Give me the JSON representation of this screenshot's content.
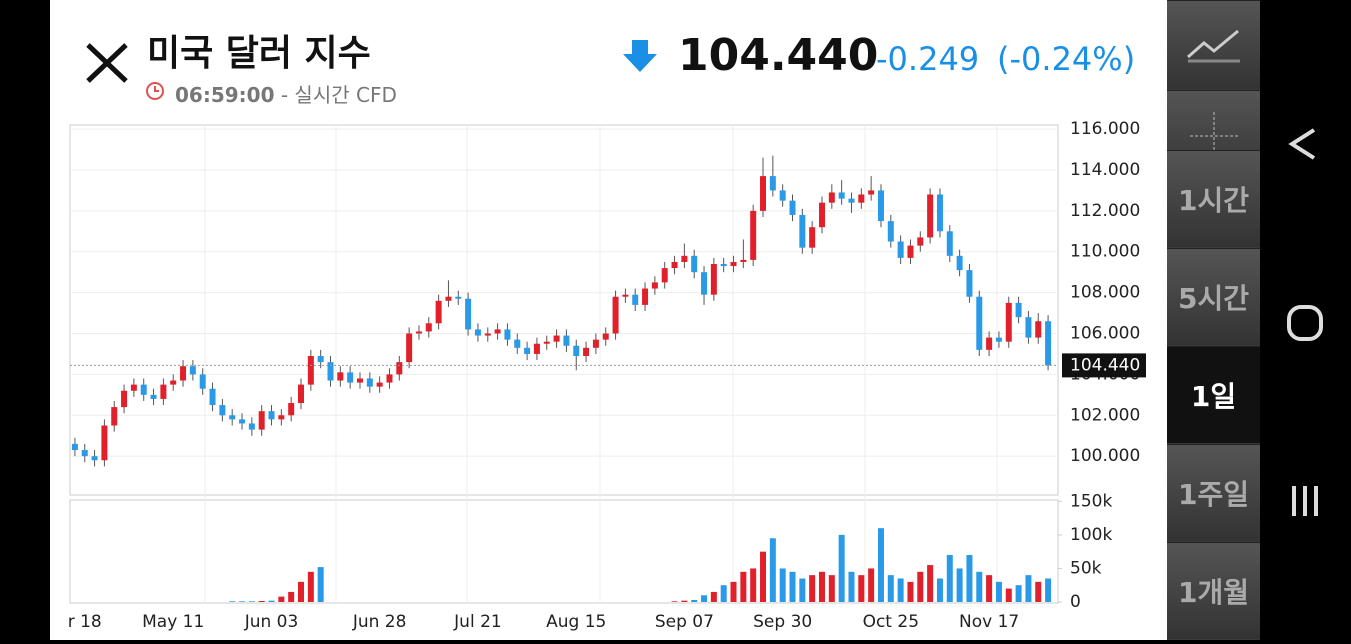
{
  "header": {
    "title": "미국 달러 지수",
    "time": "06:59:00",
    "source": "- 실시간 CFD",
    "price": "104.440",
    "change": "-0.249",
    "change_pct": "(-0.24%)"
  },
  "sidebar": {
    "intervals": [
      "1시간",
      "5시간",
      "1일",
      "1주일",
      "1개월"
    ],
    "selected": 2
  },
  "chart_data": {
    "type": "candlestick",
    "last_price": 104.44,
    "last_price_label": "104.440",
    "up_color": "#e0202a",
    "down_color": "#2a9ae8",
    "ylim": [
      98.1,
      116.2
    ],
    "yticks": [
      {
        "value": 100,
        "label": "100.000"
      },
      {
        "value": 102,
        "label": "102.000"
      },
      {
        "value": 104,
        "label": "104.000"
      },
      {
        "value": 106,
        "label": "106.000"
      },
      {
        "value": 108,
        "label": "108.000"
      },
      {
        "value": 110,
        "label": "110.000"
      },
      {
        "value": 112,
        "label": "112.000"
      },
      {
        "value": 114,
        "label": "114.000"
      },
      {
        "value": 116,
        "label": "116.000"
      }
    ],
    "volume_ylim": [
      0,
      152000
    ],
    "volume_ticks": [
      {
        "value": 0,
        "label": "0"
      },
      {
        "value": 50000,
        "label": "50k"
      },
      {
        "value": 100000,
        "label": "100k"
      },
      {
        "value": 150000,
        "label": "150k"
      }
    ],
    "categories": [
      null,
      "r 18",
      null,
      null,
      null,
      null,
      null,
      null,
      null,
      null,
      "May 11",
      null,
      null,
      null,
      null,
      null,
      null,
      null,
      null,
      null,
      "Jun 03",
      null,
      null,
      null,
      null,
      null,
      null,
      null,
      null,
      null,
      null,
      "Jun 28",
      null,
      null,
      null,
      null,
      null,
      null,
      null,
      null,
      null,
      "Jul 21",
      null,
      null,
      null,
      null,
      null,
      null,
      null,
      null,
      null,
      "Aug 15",
      null,
      null,
      null,
      null,
      null,
      null,
      null,
      null,
      null,
      null,
      "Sep 07",
      null,
      null,
      null,
      null,
      null,
      null,
      null,
      null,
      null,
      "Sep 30",
      null,
      null,
      null,
      null,
      null,
      null,
      null,
      null,
      null,
      null,
      "Oct 25",
      null,
      null,
      null,
      null,
      null,
      null,
      null,
      null,
      null,
      "Nov 17",
      null,
      null,
      null,
      null,
      null,
      null
    ],
    "ohlc": [
      [
        100.6,
        100.9,
        100.0,
        100.3
      ],
      [
        100.3,
        100.6,
        99.7,
        100.0
      ],
      [
        100.0,
        100.3,
        99.5,
        99.8
      ],
      [
        99.8,
        101.8,
        99.5,
        101.5
      ],
      [
        101.5,
        102.7,
        101.2,
        102.4
      ],
      [
        102.4,
        103.5,
        102.1,
        103.2
      ],
      [
        103.2,
        103.8,
        102.9,
        103.5
      ],
      [
        103.5,
        103.8,
        102.7,
        103.0
      ],
      [
        103.0,
        103.3,
        102.5,
        102.8
      ],
      [
        102.8,
        103.8,
        102.5,
        103.5
      ],
      [
        103.5,
        104.0,
        103.2,
        103.7
      ],
      [
        103.7,
        104.7,
        103.4,
        104.4
      ],
      [
        104.4,
        104.7,
        103.7,
        104.0
      ],
      [
        104.0,
        104.3,
        103.0,
        103.3
      ],
      [
        103.3,
        103.6,
        102.2,
        102.5
      ],
      [
        102.5,
        102.8,
        101.7,
        102.0
      ],
      [
        102.0,
        102.3,
        101.5,
        101.8
      ],
      [
        101.8,
        102.1,
        101.3,
        101.6
      ],
      [
        101.6,
        101.9,
        101.0,
        101.3
      ],
      [
        101.3,
        102.5,
        101.0,
        102.2
      ],
      [
        102.2,
        102.5,
        101.5,
        101.8
      ],
      [
        101.8,
        102.3,
        101.5,
        102.0
      ],
      [
        102.0,
        102.9,
        101.7,
        102.6
      ],
      [
        102.6,
        103.8,
        102.3,
        103.5
      ],
      [
        103.5,
        105.2,
        103.2,
        104.9
      ],
      [
        104.9,
        105.2,
        104.3,
        104.6
      ],
      [
        104.6,
        104.9,
        103.4,
        103.7
      ],
      [
        103.7,
        104.4,
        103.4,
        104.1
      ],
      [
        104.1,
        104.4,
        103.3,
        103.6
      ],
      [
        103.6,
        104.1,
        103.3,
        103.8
      ],
      [
        103.8,
        104.1,
        103.1,
        103.4
      ],
      [
        103.4,
        103.9,
        103.1,
        103.6
      ],
      [
        103.6,
        104.3,
        103.3,
        104.0
      ],
      [
        104.0,
        104.9,
        103.7,
        104.6
      ],
      [
        104.6,
        106.3,
        104.3,
        106.0
      ],
      [
        106.0,
        106.4,
        105.7,
        106.1
      ],
      [
        106.1,
        106.8,
        105.8,
        106.5
      ],
      [
        106.5,
        107.9,
        106.2,
        107.6
      ],
      [
        107.6,
        108.6,
        107.3,
        107.8
      ],
      [
        107.8,
        108.1,
        107.4,
        107.7
      ],
      [
        107.7,
        108.0,
        105.9,
        106.2
      ],
      [
        106.2,
        106.5,
        105.6,
        105.9
      ],
      [
        105.9,
        106.3,
        105.6,
        106.0
      ],
      [
        106.0,
        106.5,
        105.7,
        106.2
      ],
      [
        106.2,
        106.5,
        105.4,
        105.7
      ],
      [
        105.7,
        106.0,
        105.0,
        105.3
      ],
      [
        105.3,
        105.6,
        104.7,
        105.0
      ],
      [
        105.0,
        105.8,
        104.7,
        105.5
      ],
      [
        105.5,
        105.9,
        105.2,
        105.6
      ],
      [
        105.6,
        106.2,
        105.3,
        105.9
      ],
      [
        105.9,
        106.2,
        105.1,
        105.4
      ],
      [
        105.4,
        105.7,
        104.2,
        104.9
      ],
      [
        104.9,
        105.6,
        104.6,
        105.3
      ],
      [
        105.3,
        106.0,
        105.0,
        105.7
      ],
      [
        105.7,
        106.3,
        105.4,
        106.0
      ],
      [
        106.0,
        108.1,
        105.7,
        107.8
      ],
      [
        107.8,
        108.2,
        107.5,
        107.9
      ],
      [
        107.9,
        108.2,
        107.1,
        107.4
      ],
      [
        107.4,
        108.5,
        107.1,
        108.2
      ],
      [
        108.2,
        108.8,
        107.9,
        108.5
      ],
      [
        108.5,
        109.5,
        108.2,
        109.2
      ],
      [
        109.2,
        109.8,
        108.9,
        109.5
      ],
      [
        109.5,
        110.4,
        109.2,
        109.8
      ],
      [
        109.8,
        110.1,
        108.7,
        109.0
      ],
      [
        109.0,
        109.3,
        107.4,
        107.9
      ],
      [
        107.9,
        109.7,
        107.6,
        109.4
      ],
      [
        109.4,
        109.7,
        109.0,
        109.3
      ],
      [
        109.3,
        109.8,
        109.0,
        109.5
      ],
      [
        109.5,
        110.6,
        109.2,
        109.6
      ],
      [
        109.6,
        112.3,
        109.3,
        112.0
      ],
      [
        112.0,
        114.6,
        111.7,
        113.7
      ],
      [
        113.7,
        114.7,
        112.7,
        113.0
      ],
      [
        113.0,
        113.3,
        112.2,
        112.5
      ],
      [
        112.5,
        112.8,
        111.5,
        111.8
      ],
      [
        111.8,
        112.1,
        109.9,
        110.2
      ],
      [
        110.2,
        111.5,
        109.9,
        111.2
      ],
      [
        111.2,
        112.7,
        110.9,
        112.4
      ],
      [
        112.4,
        113.3,
        112.1,
        112.9
      ],
      [
        112.9,
        113.5,
        112.3,
        112.6
      ],
      [
        112.6,
        112.9,
        111.9,
        112.4
      ],
      [
        112.4,
        113.1,
        112.1,
        112.8
      ],
      [
        112.8,
        113.7,
        112.5,
        113.0
      ],
      [
        113.0,
        113.3,
        111.2,
        111.5
      ],
      [
        111.5,
        111.8,
        110.2,
        110.5
      ],
      [
        110.5,
        110.8,
        109.4,
        109.7
      ],
      [
        109.7,
        110.6,
        109.4,
        110.3
      ],
      [
        110.3,
        111.0,
        110.0,
        110.7
      ],
      [
        110.7,
        113.1,
        110.4,
        112.8
      ],
      [
        112.8,
        113.1,
        110.7,
        111.0
      ],
      [
        111.0,
        111.3,
        109.5,
        109.8
      ],
      [
        109.8,
        110.1,
        108.8,
        109.1
      ],
      [
        109.1,
        109.4,
        107.5,
        107.8
      ],
      [
        107.8,
        108.1,
        104.9,
        105.2
      ],
      [
        105.2,
        106.1,
        104.9,
        105.8
      ],
      [
        105.8,
        106.1,
        105.3,
        105.6
      ],
      [
        105.6,
        107.8,
        105.3,
        107.5
      ],
      [
        107.5,
        107.8,
        106.5,
        106.8
      ],
      [
        106.8,
        107.1,
        105.5,
        105.8
      ],
      [
        105.8,
        107.0,
        105.5,
        106.6
      ],
      [
        106.6,
        106.9,
        104.2,
        104.44
      ]
    ],
    "volume": [
      0,
      0,
      0,
      0,
      0,
      0,
      0,
      0,
      0,
      0,
      0,
      0,
      0,
      0,
      0,
      0,
      1000,
      1000,
      1000,
      1500,
      2000,
      8000,
      15000,
      30000,
      45000,
      52000,
      0,
      0,
      0,
      0,
      0,
      0,
      0,
      0,
      0,
      0,
      0,
      0,
      0,
      0,
      0,
      0,
      0,
      0,
      0,
      0,
      0,
      0,
      0,
      0,
      0,
      0,
      0,
      0,
      0,
      0,
      0,
      0,
      0,
      0,
      0,
      1000,
      2000,
      3000,
      10000,
      15000,
      25000,
      30000,
      45000,
      50000,
      75000,
      95000,
      50000,
      45000,
      35000,
      40000,
      45000,
      40000,
      100000,
      45000,
      40000,
      50000,
      110000,
      40000,
      35000,
      30000,
      45000,
      55000,
      35000,
      70000,
      50000,
      70000,
      45000,
      40000,
      30000,
      20000,
      25000,
      40000,
      30000,
      35000
    ]
  }
}
